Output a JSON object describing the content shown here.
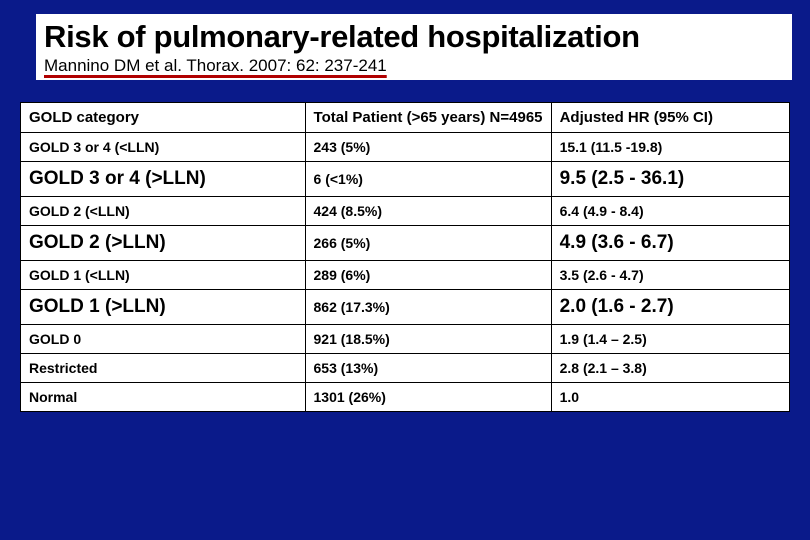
{
  "colors": {
    "background": "#0a1a8a",
    "panel": "#ffffff",
    "underline": "#b00000",
    "text": "#000000",
    "border": "#000000"
  },
  "title": "Risk of pulmonary-related hospitalization",
  "citation": "Mannino DM et al.  Thorax. 2007: 62: 237-241",
  "table": {
    "columns": [
      "GOLD category",
      "Total Patient (>65 years) N=4965",
      "Adjusted HR (95% CI)"
    ],
    "col_widths_pct": [
      37,
      32,
      31
    ],
    "rows": [
      {
        "category": "GOLD 3 or 4 (<LLN)",
        "total": "243 (5%)",
        "hr": "15.1 (11.5 -19.8)",
        "emph": false
      },
      {
        "category": "GOLD 3 or 4 (>LLN)",
        "total": "6 (<1%)",
        "hr": "9.5 (2.5 - 36.1)",
        "emph": true
      },
      {
        "category": "GOLD 2 (<LLN)",
        "total": "424 (8.5%)",
        "hr": "6.4 (4.9 - 8.4)",
        "emph": false
      },
      {
        "category": "GOLD 2 (>LLN)",
        "total": "266 (5%)",
        "hr": "4.9 (3.6 - 6.7)",
        "emph": true
      },
      {
        "category": "GOLD 1 (<LLN)",
        "total": "289 (6%)",
        "hr": "3.5 (2.6 - 4.7)",
        "emph": false
      },
      {
        "category": "GOLD 1 (>LLN)",
        "total": "862 (17.3%)",
        "hr": "2.0 (1.6 - 2.7)",
        "emph": true
      },
      {
        "category": "GOLD 0",
        "total": "921  (18.5%)",
        "hr": "1.9 (1.4 – 2.5)",
        "emph": false
      },
      {
        "category": "Restricted",
        "total": "653 (13%)",
        "hr": "2.8 (2.1 – 3.8)",
        "emph": false
      },
      {
        "category": "Normal",
        "total": "1301 (26%)",
        "hr": "1.0",
        "emph": false
      }
    ],
    "font": {
      "header_size_pt": 15,
      "row_size_pt": 14,
      "emph_size_pt": 19,
      "weight": "bold",
      "family": "Arial"
    }
  }
}
